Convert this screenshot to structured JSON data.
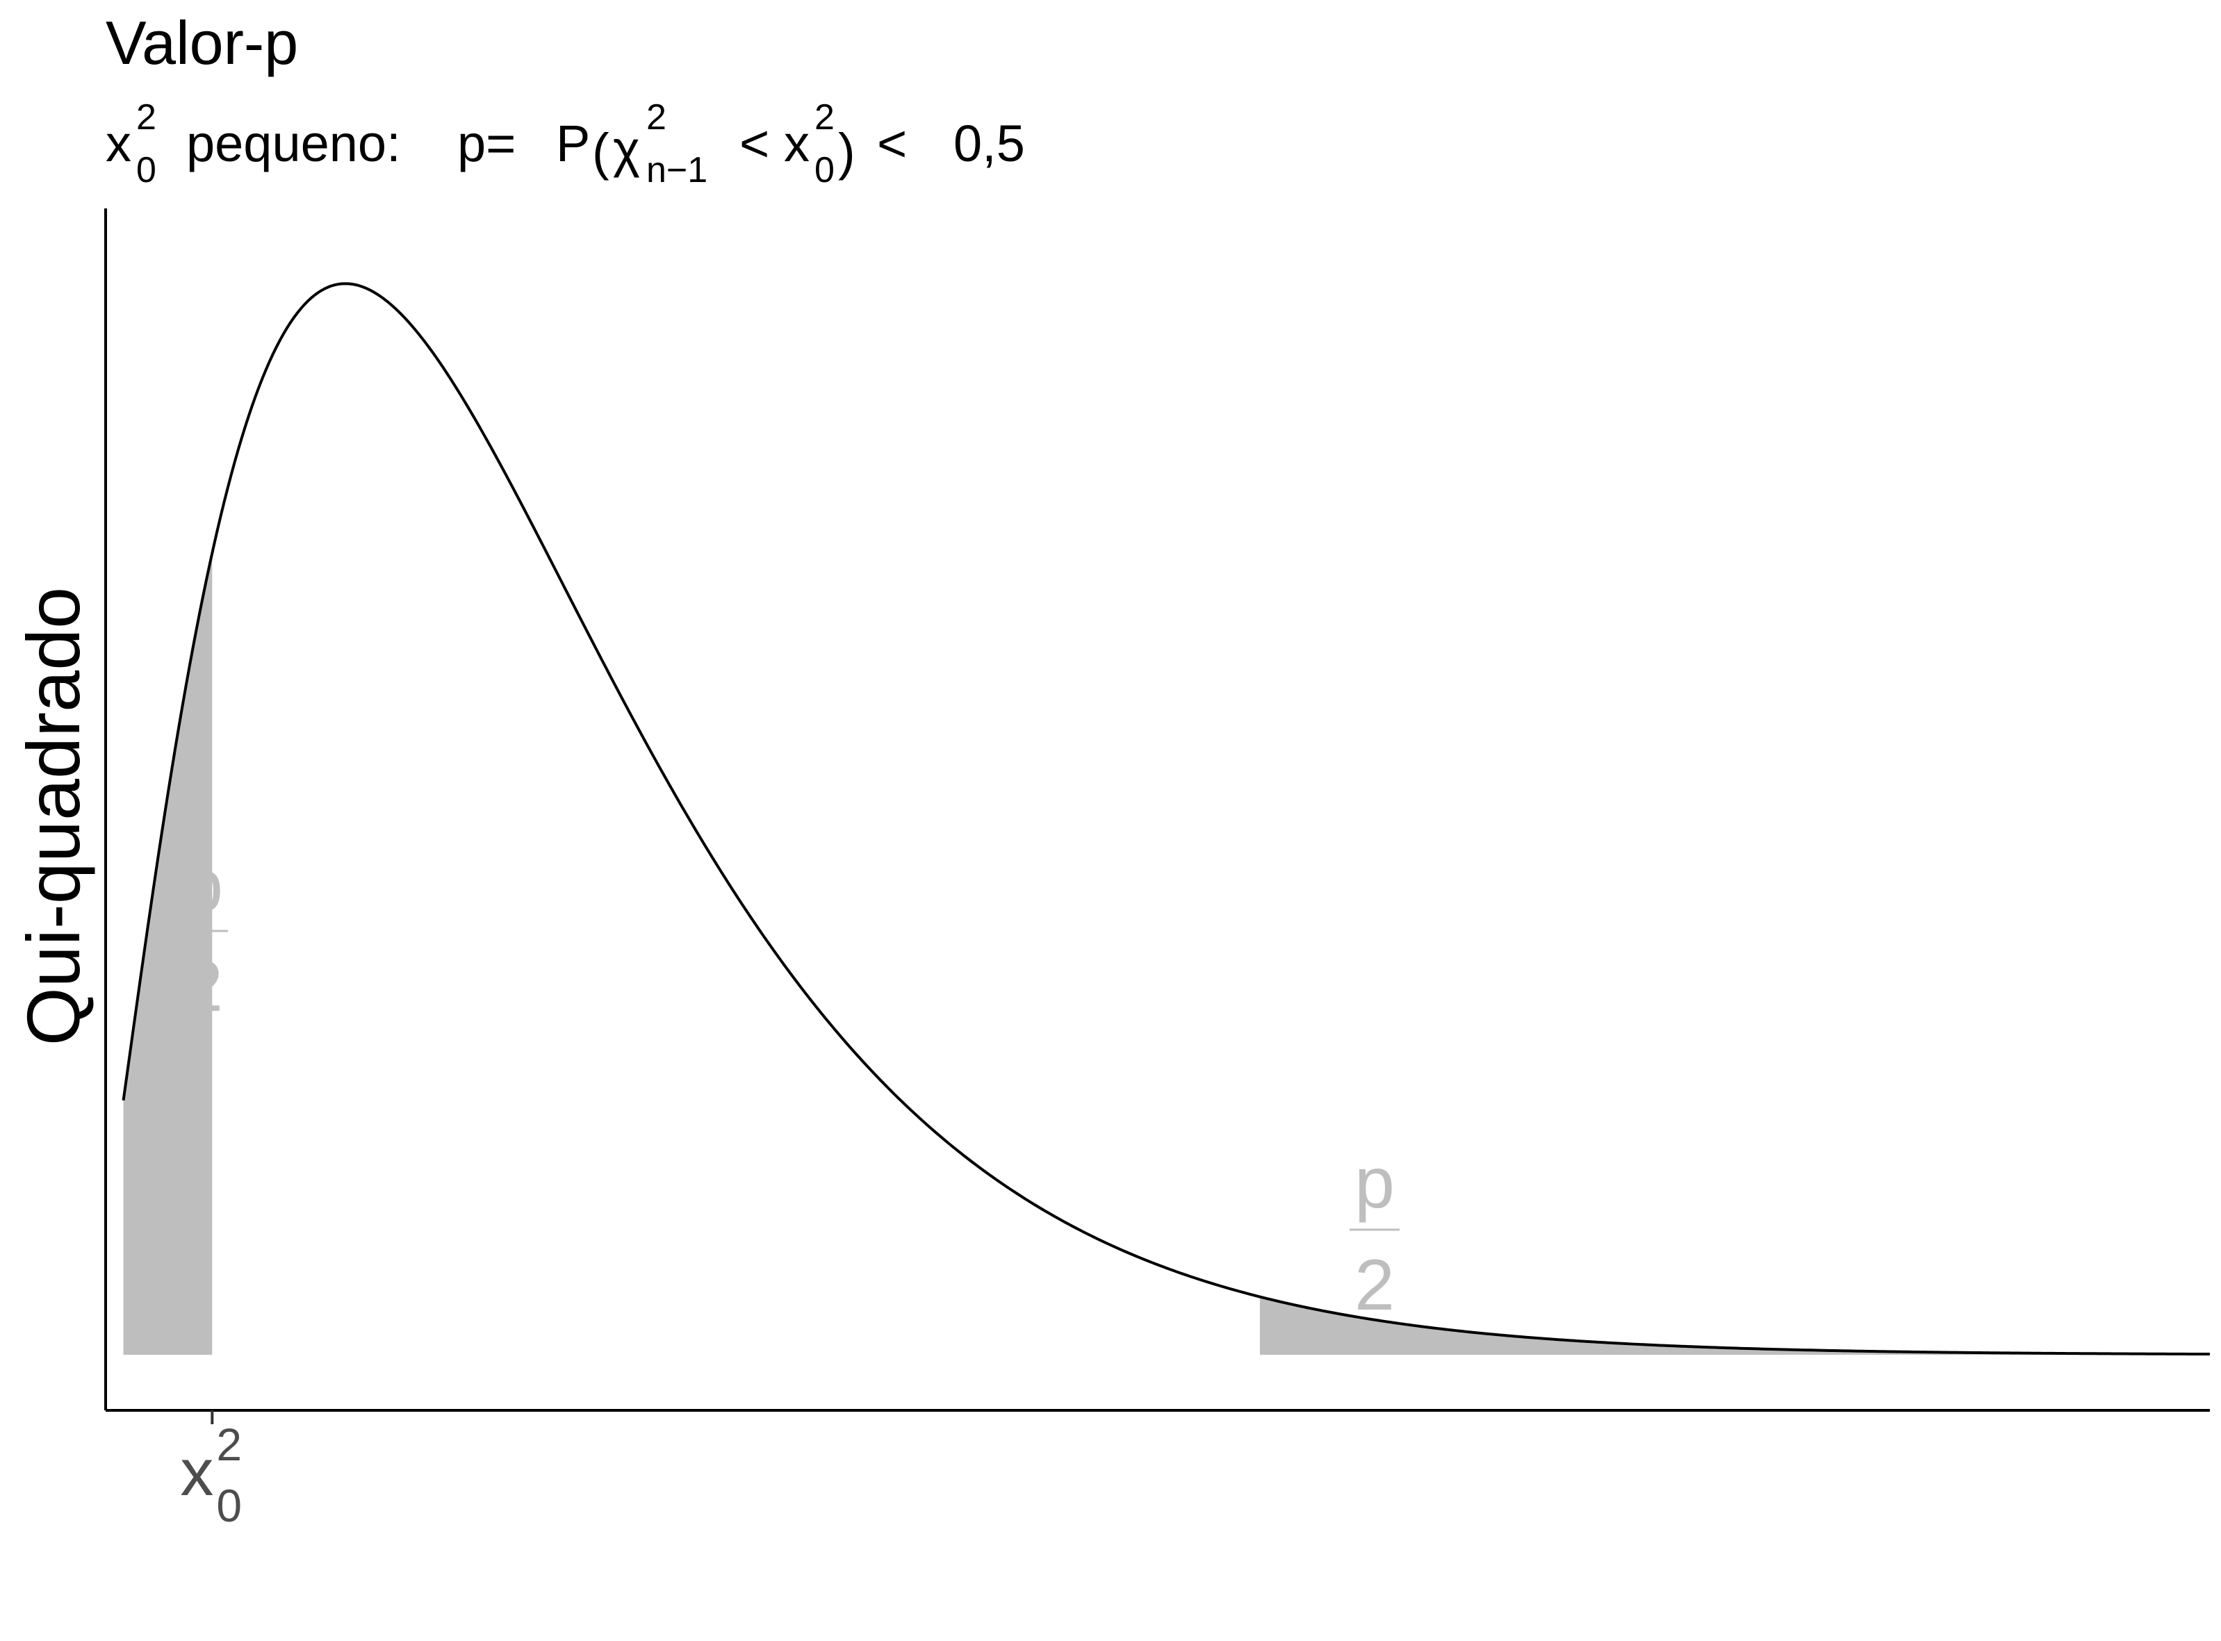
{
  "chart_data": {
    "type": "area",
    "title": "Valor-p",
    "subtitle": {
      "x0": "x",
      "x0_sup": "2",
      "x0_sub": "0",
      "pequeno": "pequeno:",
      "p_eq": "p=",
      "P": "P",
      "open_paren": "(",
      "chi": "χ",
      "chi_sup": "2",
      "chi_sub": "n−1",
      "lt1": "<",
      "x": "x",
      "x_sup": "2",
      "x_sub": "0",
      "close_paren": ")",
      "lt2": "<",
      "value": "0,5"
    },
    "ylabel": "Qui-quadrado",
    "xlabel": "",
    "x_tick": {
      "base": "x",
      "sup": "2",
      "sub": "0",
      "x": 1.5
    },
    "distribution": {
      "name": "chi-squared",
      "df": 5
    },
    "xlim": [
      0.3,
      24
    ],
    "ylim": [
      -0.008,
      0.165
    ],
    "series": [
      {
        "x_range": [
          0.5,
          24
        ],
        "shaded": false
      }
    ],
    "shaded_regions": [
      {
        "from": 0.5,
        "to": 1.5,
        "label_num": "p",
        "label_den": "2",
        "color": "#bebebe"
      },
      {
        "from": 13.3,
        "to": 24,
        "label_num": "p",
        "label_den": "2",
        "color": "#bebebe"
      }
    ],
    "grid": false,
    "colors": {
      "curve": "#000000",
      "shade": "#bebebe",
      "axis": "#000000",
      "tick_text": "#4d4d4d"
    }
  }
}
